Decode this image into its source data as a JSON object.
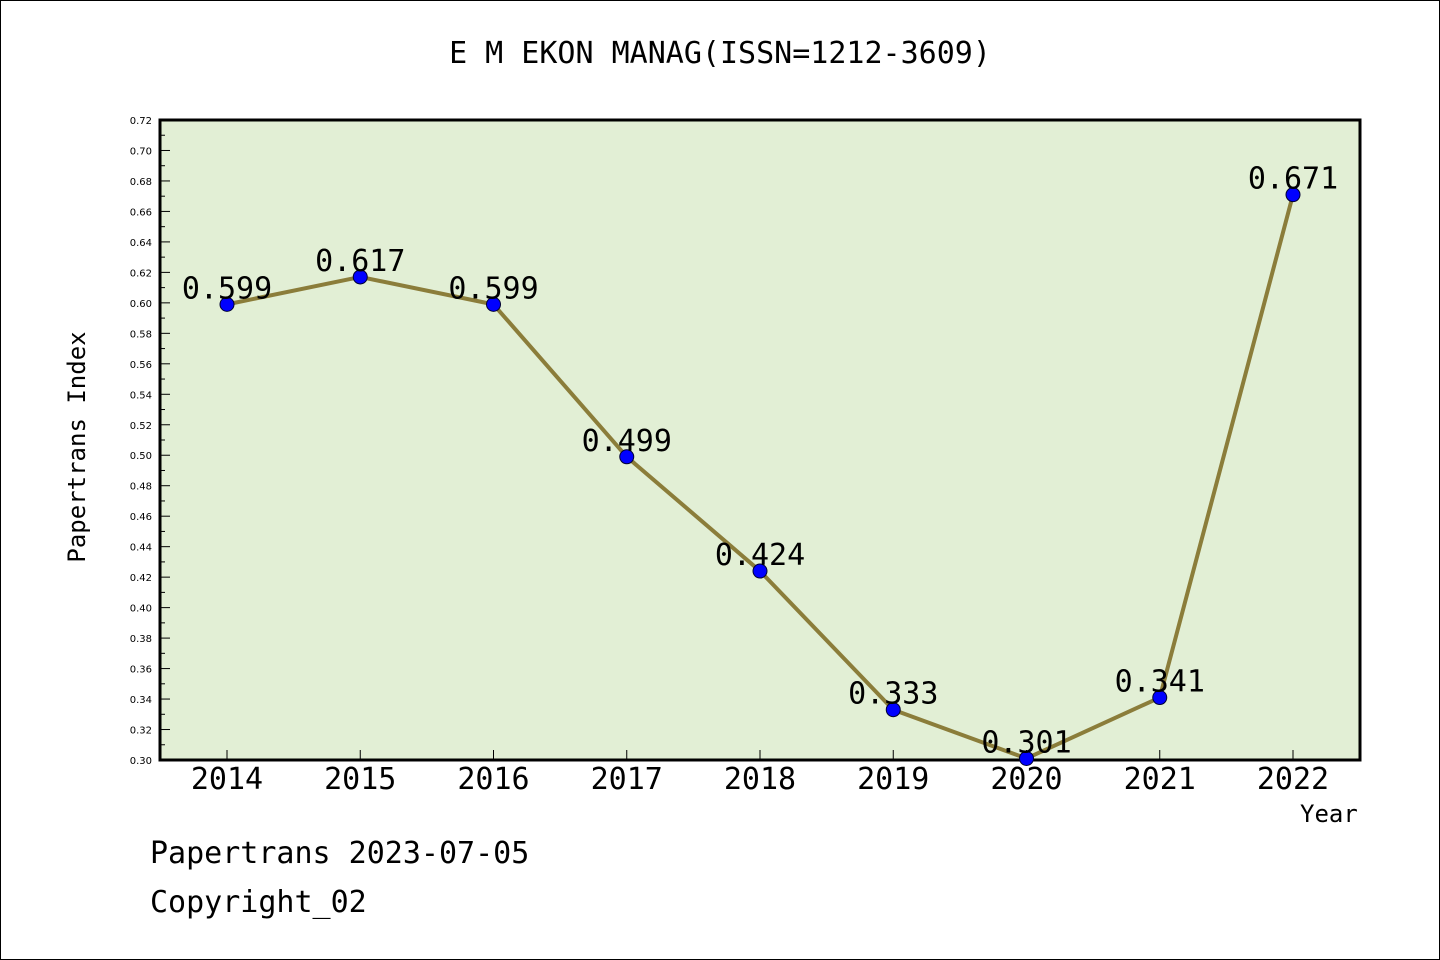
{
  "chart_data": {
    "type": "line",
    "title": "E M EKON MANAG(ISSN=1212-3609)",
    "xlabel": "Year",
    "ylabel": "Papertrans Index",
    "categories": [
      "2014",
      "2015",
      "2016",
      "2017",
      "2018",
      "2019",
      "2020",
      "2021",
      "2022"
    ],
    "values": [
      0.599,
      0.617,
      0.599,
      0.499,
      0.424,
      0.333,
      0.301,
      0.341,
      0.671
    ],
    "value_labels": [
      "0.599",
      "0.617",
      "0.599",
      "0.499",
      "0.424",
      "0.333",
      "0.301",
      "0.341",
      "0.671"
    ],
    "ylim": [
      0.3,
      0.72
    ],
    "ytick_step": 0.02,
    "grid": false,
    "legend": "none",
    "colors": {
      "plot_background": "#e2efd5",
      "line": "#8b7d3a",
      "marker": "#0000ff",
      "marker_edge": "#000033"
    }
  },
  "footer": {
    "date_text": "Papertrans 2023-07-05",
    "copyright_text": "Copyright_02"
  }
}
